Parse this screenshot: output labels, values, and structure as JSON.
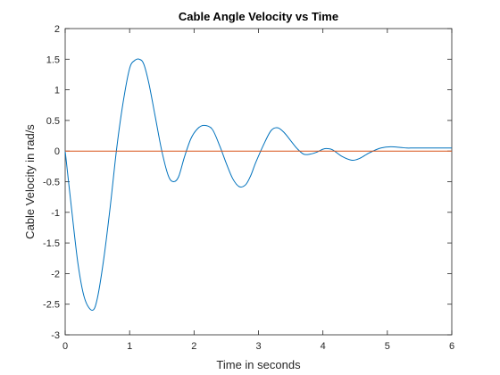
{
  "chart_data": {
    "type": "line",
    "title": "Cable Angle Velocity vs Time",
    "xlabel": "Time in seconds",
    "ylabel": "Cable Velocity in rad/s",
    "xlim": [
      0,
      6
    ],
    "ylim": [
      -3,
      2
    ],
    "xticks": [
      0,
      1,
      2,
      3,
      4,
      5,
      6
    ],
    "yticks": [
      -3,
      -2.5,
      -2,
      -1.5,
      -1,
      -0.5,
      0,
      0.5,
      1,
      1.5,
      2
    ],
    "grid": false,
    "colors": {
      "velocity": "#0072BD",
      "zero": "#D95319",
      "axes": "#262626"
    },
    "series": [
      {
        "x": [
          0,
          0.1,
          0.2,
          0.3,
          0.42,
          0.5,
          0.6,
          0.7,
          0.8,
          0.9,
          1.0,
          1.08,
          1.15,
          1.22,
          1.3,
          1.4,
          1.5,
          1.6,
          1.68,
          1.76,
          1.85,
          1.95,
          2.05,
          2.15,
          2.28,
          2.4,
          2.5,
          2.6,
          2.7,
          2.8,
          2.88,
          2.96,
          3.1,
          3.2,
          3.3,
          3.4,
          3.5,
          3.6,
          3.7,
          3.8,
          3.9,
          4.0,
          4.07,
          4.15,
          4.3,
          4.45,
          4.57,
          4.7,
          4.8,
          4.9,
          5.05,
          5.2,
          5.3,
          5.4,
          5.55,
          5.72,
          5.85,
          6.0
        ],
        "y": [
          0,
          -0.95,
          -1.85,
          -2.4,
          -2.6,
          -2.4,
          -1.75,
          -0.9,
          0.05,
          0.8,
          1.35,
          1.48,
          1.5,
          1.42,
          1.1,
          0.55,
          0,
          -0.4,
          -0.5,
          -0.42,
          -0.1,
          0.2,
          0.36,
          0.42,
          0.36,
          0.08,
          -0.2,
          -0.45,
          -0.58,
          -0.55,
          -0.4,
          -0.18,
          0.15,
          0.34,
          0.38,
          0.3,
          0.17,
          0.04,
          -0.05,
          -0.05,
          -0.02,
          0.03,
          0.04,
          0.02,
          -0.09,
          -0.15,
          -0.12,
          -0.04,
          0.01,
          0.05,
          0.07,
          0.06,
          0.05,
          0.05,
          0.05,
          0.05,
          0.05,
          0.05
        ]
      },
      {
        "x": [
          0,
          6
        ],
        "y": [
          0,
          0
        ]
      }
    ]
  }
}
